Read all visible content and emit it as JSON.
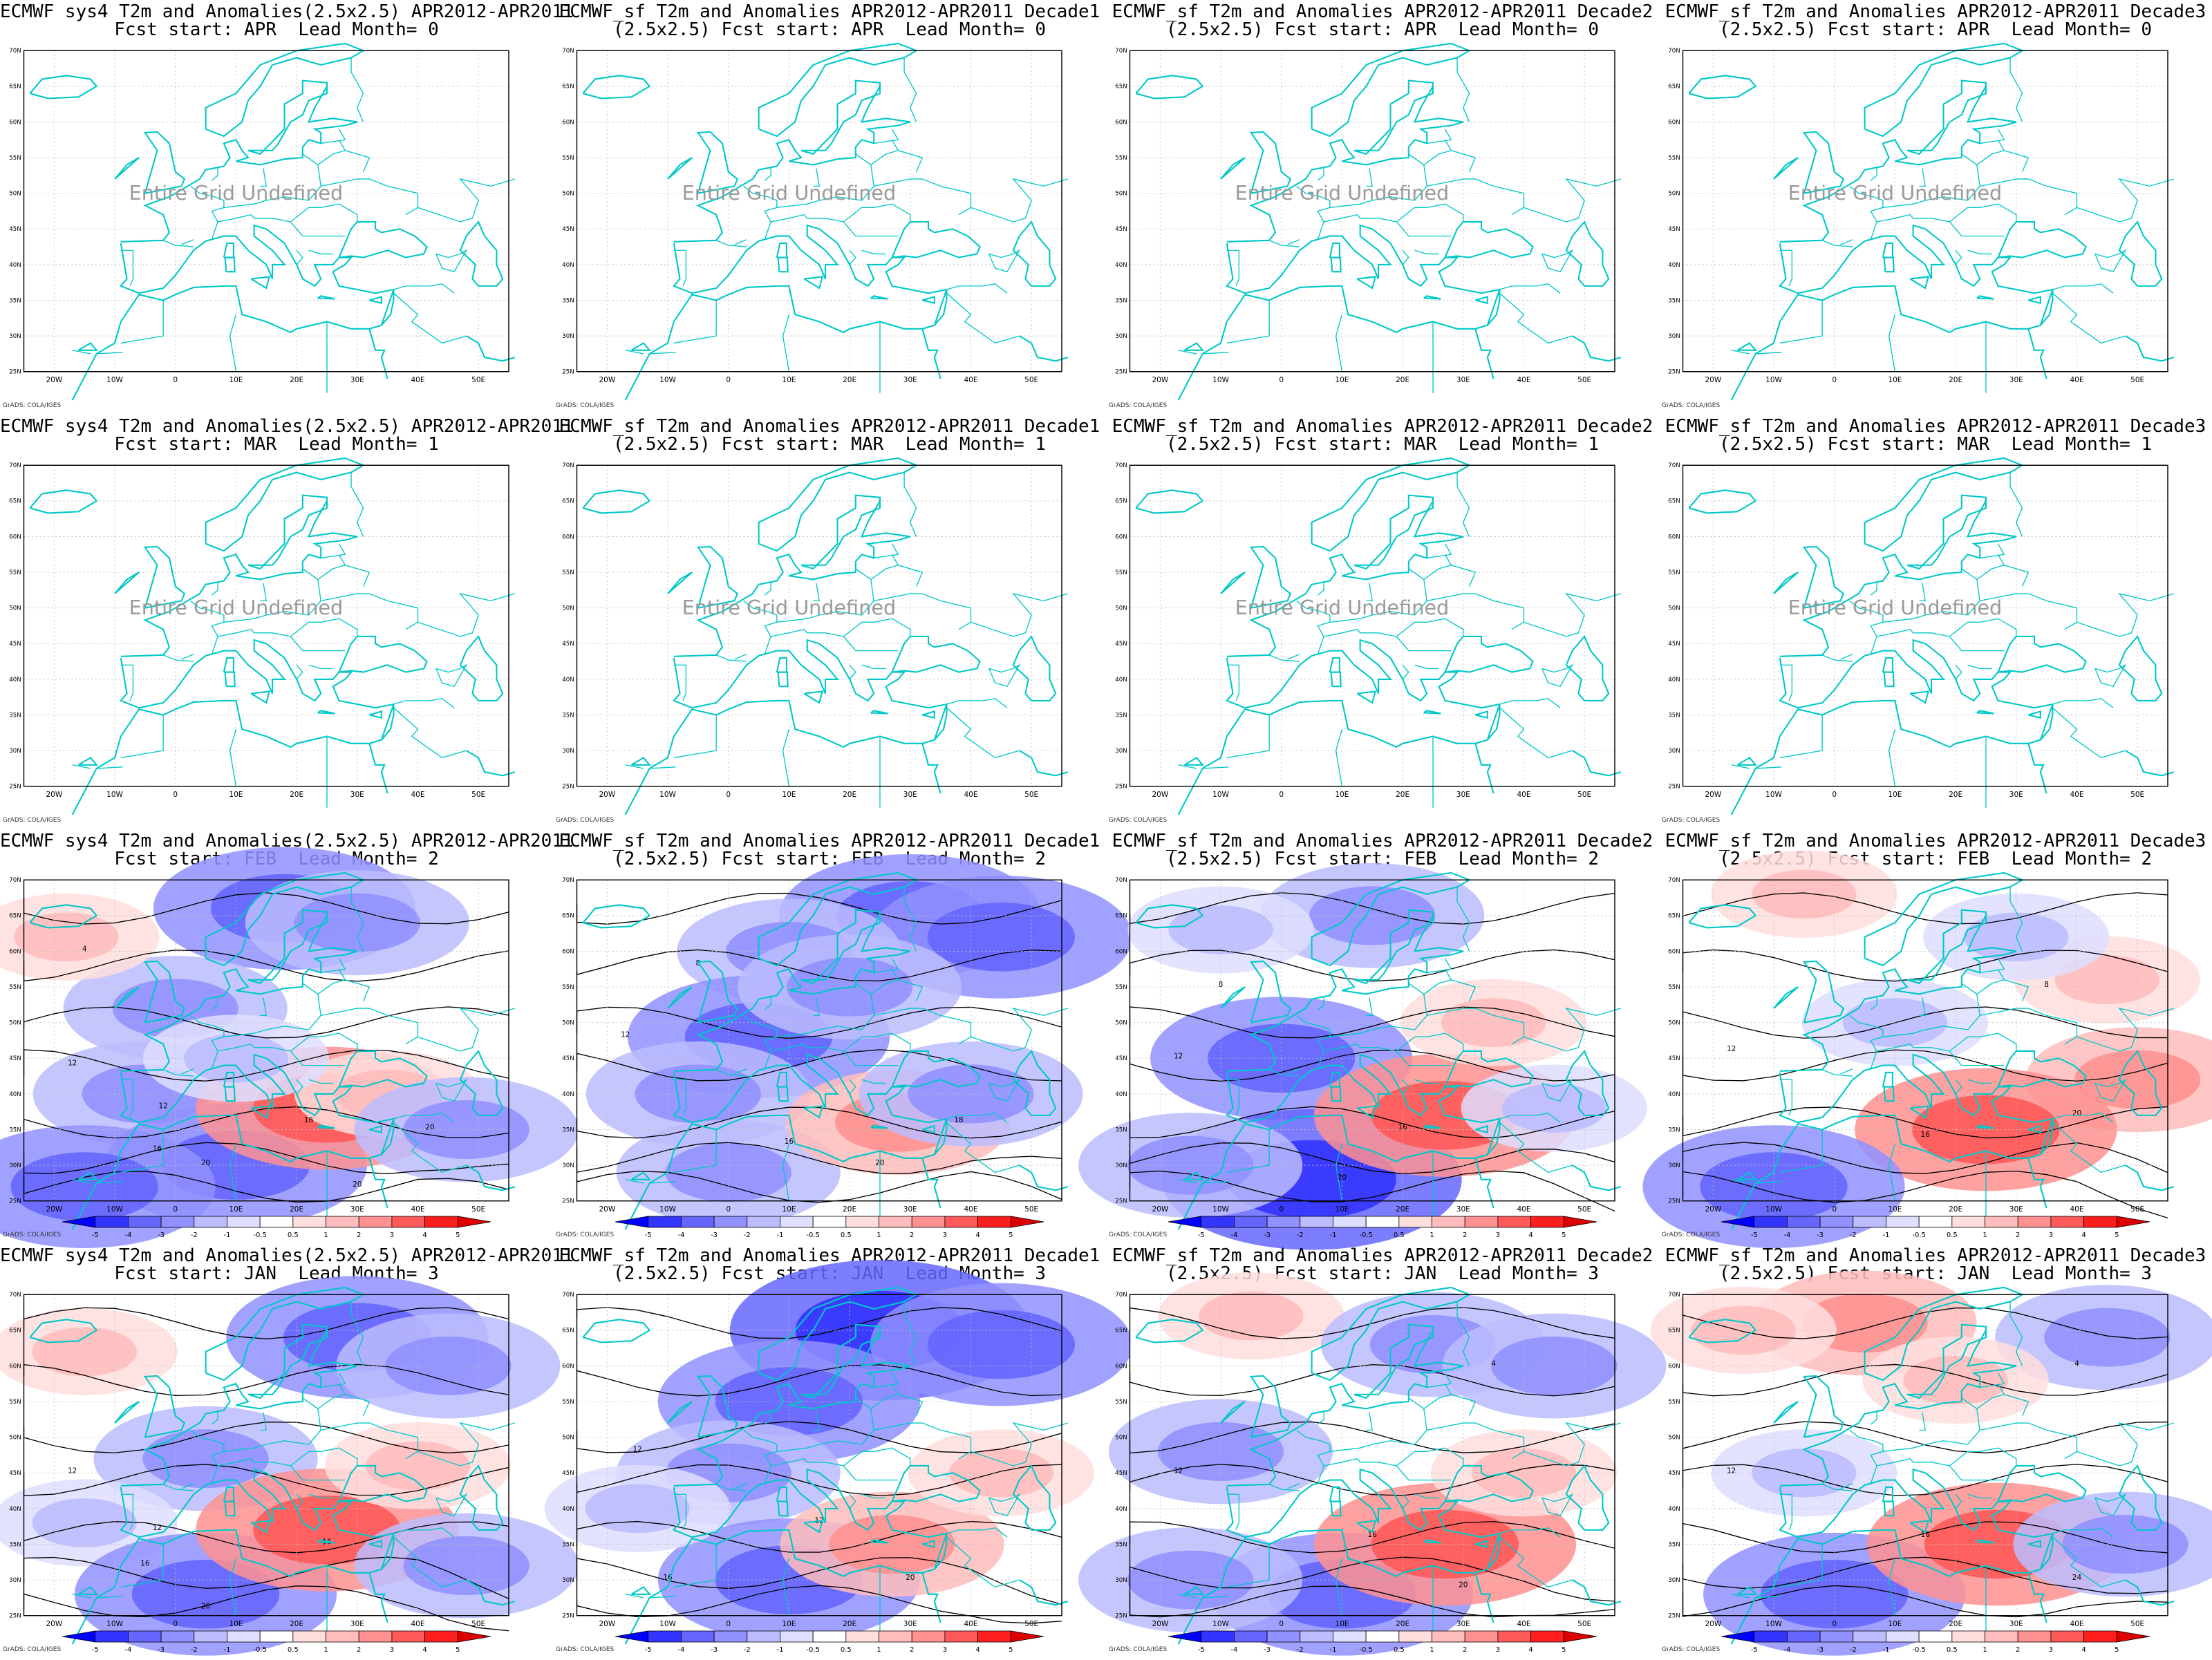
{
  "credit": "GrADS: COLA/IGES",
  "undefined_label": "Entire Grid Undefined",
  "lat_labels": [
    "70N",
    "65N",
    "60N",
    "55N",
    "50N",
    "45N",
    "40N",
    "35N",
    "30N",
    "25N"
  ],
  "lon_labels": [
    "20W",
    "10W",
    "0",
    "10E",
    "20E",
    "30E",
    "40E",
    "50E"
  ],
  "colorbar": {
    "labels": [
      "-5",
      "-4",
      "-3",
      "-2",
      "-1",
      "-0.5",
      "0.5",
      "1",
      "2",
      "3",
      "4",
      "5"
    ],
    "colors": [
      "#0000ff",
      "#3434ff",
      "#6666ff",
      "#9191ff",
      "#bcbcff",
      "#dedeff",
      "#ffffff",
      "#ffdede",
      "#ffbcbc",
      "#ff9191",
      "#ff5a5a",
      "#ff1e1e",
      "#dd0000"
    ]
  },
  "colors": {
    "coast": "#00c8c8",
    "grid": "#bfbfbf",
    "contour": "#000000"
  },
  "panels": [
    {
      "title": [
        "ECMWF sys4 T2m and Anomalies(2.5x2.5) APR2012-APR2011",
        "Fcst start: APR  Lead Month= 0"
      ],
      "defined": false
    },
    {
      "title": [
        "ECMWF_sf T2m and Anomalies APR2012-APR2011 Decade1",
        "(2.5x2.5) Fcst start: APR  Lead Month= 0"
      ],
      "defined": false
    },
    {
      "title": [
        "ECMWF_sf T2m and Anomalies APR2012-APR2011 Decade2",
        "(2.5x2.5) Fcst start: APR  Lead Month= 0"
      ],
      "defined": false
    },
    {
      "title": [
        "ECMWF_sf T2m and Anomalies APR2012-APR2011 Decade3",
        "(2.5x2.5) Fcst start: APR  Lead Month= 0"
      ],
      "defined": false
    },
    {
      "title": [
        "ECMWF sys4 T2m and Anomalies(2.5x2.5) APR2012-APR2011",
        "Fcst start: MAR  Lead Month= 1"
      ],
      "defined": false
    },
    {
      "title": [
        "ECMWF_sf T2m and Anomalies APR2012-APR2011 Decade1",
        "(2.5x2.5) Fcst start: MAR  Lead Month= 1"
      ],
      "defined": false
    },
    {
      "title": [
        "ECMWF_sf T2m and Anomalies APR2012-APR2011 Decade2",
        "(2.5x2.5) Fcst start: MAR  Lead Month= 1"
      ],
      "defined": false
    },
    {
      "title": [
        "ECMWF_sf T2m and Anomalies APR2012-APR2011 Decade3",
        "(2.5x2.5) Fcst start: MAR  Lead Month= 1"
      ],
      "defined": false
    },
    {
      "title": [
        "ECMWF sys4 T2m and Anomalies(2.5x2.5) APR2012-APR2011",
        "Fcst start: FEB  Lead Month= 2"
      ],
      "defined": true,
      "anomalies": [
        {
          "lon": 18,
          "lat": 66,
          "v": -3
        },
        {
          "lon": 30,
          "lat": 64,
          "v": -2
        },
        {
          "lon": 0,
          "lat": 52,
          "v": -2
        },
        {
          "lon": -5,
          "lat": 40,
          "v": -2
        },
        {
          "lon": 10,
          "lat": 30,
          "v": -3
        },
        {
          "lon": -15,
          "lat": 27,
          "v": -3
        },
        {
          "lon": 25,
          "lat": 38,
          "v": 3
        },
        {
          "lon": 35,
          "lat": 40,
          "v": 1
        },
        {
          "lon": 48,
          "lat": 35,
          "v": -2
        },
        {
          "lon": -18,
          "lat": 62,
          "v": 1
        },
        {
          "lon": 10,
          "lat": 45,
          "v": -1
        }
      ],
      "contour_labels": [
        {
          "lon": -17,
          "lat": 44,
          "t": "12"
        },
        {
          "lon": -3,
          "lat": 32,
          "t": "16"
        },
        {
          "lon": 5,
          "lat": 30,
          "t": "20"
        },
        {
          "lon": -15,
          "lat": 60,
          "t": "4"
        },
        {
          "lon": 22,
          "lat": 36,
          "t": "16"
        },
        {
          "lon": 30,
          "lat": 27,
          "t": "20"
        },
        {
          "lon": 42,
          "lat": 35,
          "t": "20"
        },
        {
          "lon": -2,
          "lat": 38,
          "t": "12"
        }
      ]
    },
    {
      "title": [
        "ECMWF_sf T2m and Anomalies APR2012-APR2011 Decade1",
        "(2.5x2.5) Fcst start: FEB  Lead Month= 2"
      ],
      "defined": true,
      "anomalies": [
        {
          "lon": 30,
          "lat": 65,
          "v": -3
        },
        {
          "lon": 45,
          "lat": 62,
          "v": -3
        },
        {
          "lon": 10,
          "lat": 60,
          "v": -2
        },
        {
          "lon": 5,
          "lat": 48,
          "v": -3
        },
        {
          "lon": -5,
          "lat": 40,
          "v": -2
        },
        {
          "lon": 0,
          "lat": 29,
          "v": -2
        },
        {
          "lon": 28,
          "lat": 36,
          "v": 2
        },
        {
          "lon": 40,
          "lat": 40,
          "v": -2
        },
        {
          "lon": 20,
          "lat": 55,
          "v": -2
        }
      ],
      "contour_labels": [
        {
          "lon": -17,
          "lat": 48,
          "t": "12"
        },
        {
          "lon": 10,
          "lat": 33,
          "t": "16"
        },
        {
          "lon": -5,
          "lat": 58,
          "t": "8"
        },
        {
          "lon": 25,
          "lat": 30,
          "t": "20"
        },
        {
          "lon": 38,
          "lat": 36,
          "t": "18"
        }
      ]
    },
    {
      "title": [
        "ECMWF_sf T2m and Anomalies APR2012-APR2011 Decade2",
        "(2.5x2.5) Fcst start: FEB  Lead Month= 2"
      ],
      "defined": true,
      "anomalies": [
        {
          "lon": 15,
          "lat": 65,
          "v": -2
        },
        {
          "lon": -10,
          "lat": 63,
          "v": -1
        },
        {
          "lon": 0,
          "lat": 45,
          "v": -3
        },
        {
          "lon": 5,
          "lat": 28,
          "v": -4
        },
        {
          "lon": -15,
          "lat": 30,
          "v": -2
        },
        {
          "lon": 27,
          "lat": 37,
          "v": 3
        },
        {
          "lon": 35,
          "lat": 50,
          "v": 1
        },
        {
          "lon": 45,
          "lat": 38,
          "v": -1
        }
      ],
      "contour_labels": [
        {
          "lon": -17,
          "lat": 45,
          "t": "12"
        },
        {
          "lon": 20,
          "lat": 35,
          "t": "16"
        },
        {
          "lon": 10,
          "lat": 28,
          "t": "20"
        },
        {
          "lon": -10,
          "lat": 55,
          "t": "8"
        }
      ]
    },
    {
      "title": [
        "ECMWF_sf T2m and Anomalies APR2012-APR2011 Decade3",
        "(2.5x2.5) Fcst start: FEB  Lead Month= 2"
      ],
      "defined": true,
      "anomalies": [
        {
          "lon": -5,
          "lat": 68,
          "v": 1
        },
        {
          "lon": 45,
          "lat": 56,
          "v": 1
        },
        {
          "lon": 50,
          "lat": 42,
          "v": 2
        },
        {
          "lon": 25,
          "lat": 35,
          "v": 3
        },
        {
          "lon": -10,
          "lat": 27,
          "v": -3
        },
        {
          "lon": 10,
          "lat": 50,
          "v": -1
        },
        {
          "lon": 30,
          "lat": 62,
          "v": -1
        }
      ],
      "contour_labels": [
        {
          "lon": -17,
          "lat": 46,
          "t": "12"
        },
        {
          "lon": 15,
          "lat": 34,
          "t": "16"
        },
        {
          "lon": 40,
          "lat": 37,
          "t": "20"
        },
        {
          "lon": 35,
          "lat": 55,
          "t": "8"
        }
      ]
    },
    {
      "title": [
        "ECMWF sys4 T2m and Anomalies(2.5x2.5) APR2012-APR2011",
        "Fcst start: JAN  Lead Month= 3"
      ],
      "defined": true,
      "anomalies": [
        {
          "lon": 30,
          "lat": 64,
          "v": -3
        },
        {
          "lon": 45,
          "lat": 60,
          "v": -2
        },
        {
          "lon": -15,
          "lat": 62,
          "v": 1
        },
        {
          "lon": 5,
          "lat": 47,
          "v": -2
        },
        {
          "lon": -15,
          "lat": 38,
          "v": -1
        },
        {
          "lon": 5,
          "lat": 28,
          "v": -3
        },
        {
          "lon": 25,
          "lat": 37,
          "v": 3
        },
        {
          "lon": 40,
          "lat": 46,
          "v": 1
        },
        {
          "lon": 48,
          "lat": 32,
          "v": -2
        }
      ],
      "contour_labels": [
        {
          "lon": -17,
          "lat": 45,
          "t": "12"
        },
        {
          "lon": -3,
          "lat": 37,
          "t": "12"
        },
        {
          "lon": -5,
          "lat": 32,
          "t": "16"
        },
        {
          "lon": 5,
          "lat": 26,
          "t": "20"
        },
        {
          "lon": 25,
          "lat": 35,
          "t": "16"
        }
      ]
    },
    {
      "title": [
        "ECMWF_sf T2m and Anomalies APR2012-APR2011 Decade1",
        "(2.5x2.5) Fcst start: JAN  Lead Month= 3"
      ],
      "defined": true,
      "anomalies": [
        {
          "lon": 25,
          "lat": 65,
          "v": -4
        },
        {
          "lon": 45,
          "lat": 63,
          "v": -3
        },
        {
          "lon": 10,
          "lat": 55,
          "v": -3
        },
        {
          "lon": 0,
          "lat": 45,
          "v": -2
        },
        {
          "lon": 10,
          "lat": 30,
          "v": -3
        },
        {
          "lon": 27,
          "lat": 35,
          "v": 2
        },
        {
          "lon": 45,
          "lat": 45,
          "v": 1
        },
        {
          "lon": -15,
          "lat": 40,
          "v": -1
        }
      ],
      "contour_labels": [
        {
          "lon": -15,
          "lat": 48,
          "t": "12"
        },
        {
          "lon": 15,
          "lat": 38,
          "t": "12"
        },
        {
          "lon": -10,
          "lat": 30,
          "t": "16"
        },
        {
          "lon": 30,
          "lat": 30,
          "t": "20"
        }
      ]
    },
    {
      "title": [
        "ECMWF_sf T2m and Anomalies APR2012-APR2011 Decade2",
        "(2.5x2.5) Fcst start: JAN  Lead Month= 3"
      ],
      "defined": true,
      "anomalies": [
        {
          "lon": -5,
          "lat": 67,
          "v": 1
        },
        {
          "lon": 25,
          "lat": 63,
          "v": -2
        },
        {
          "lon": 45,
          "lat": 60,
          "v": -2
        },
        {
          "lon": -10,
          "lat": 48,
          "v": -2
        },
        {
          "lon": 10,
          "lat": 28,
          "v": -3
        },
        {
          "lon": 27,
          "lat": 35,
          "v": 3
        },
        {
          "lon": 40,
          "lat": 45,
          "v": 1
        },
        {
          "lon": -15,
          "lat": 30,
          "v": -2
        }
      ],
      "contour_labels": [
        {
          "lon": -17,
          "lat": 45,
          "t": "12"
        },
        {
          "lon": 15,
          "lat": 36,
          "t": "16"
        },
        {
          "lon": 30,
          "lat": 29,
          "t": "20"
        },
        {
          "lon": 35,
          "lat": 60,
          "t": "4"
        }
      ]
    },
    {
      "title": [
        "ECMWF_sf T2m and Anomalies APR2012-APR2011 Decade3",
        "(2.5x2.5) Fcst start: JAN  Lead Month= 3"
      ],
      "defined": true,
      "anomalies": [
        {
          "lon": 5,
          "lat": 66,
          "v": 2
        },
        {
          "lon": -15,
          "lat": 65,
          "v": 1
        },
        {
          "lon": 45,
          "lat": 64,
          "v": -2
        },
        {
          "lon": 20,
          "lat": 58,
          "v": 1
        },
        {
          "lon": -5,
          "lat": 45,
          "v": -1
        },
        {
          "lon": 0,
          "lat": 28,
          "v": -3
        },
        {
          "lon": 27,
          "lat": 35,
          "v": 3
        },
        {
          "lon": 48,
          "lat": 35,
          "v": -2
        }
      ],
      "contour_labels": [
        {
          "lon": -17,
          "lat": 45,
          "t": "12"
        },
        {
          "lon": 15,
          "lat": 36,
          "t": "16"
        },
        {
          "lon": 40,
          "lat": 30,
          "t": "24"
        },
        {
          "lon": 40,
          "lat": 60,
          "t": "4"
        }
      ]
    }
  ]
}
